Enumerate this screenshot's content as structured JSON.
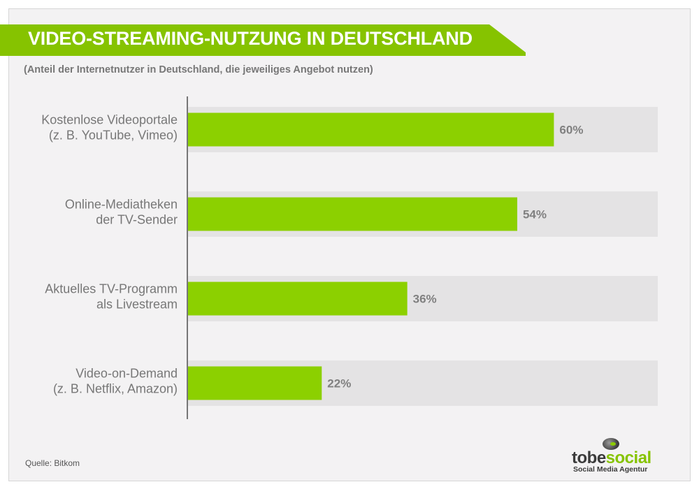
{
  "header": {
    "title": "VIDEO-STREAMING-NUTZUNG IN DEUTSCHLAND",
    "subtitle": "(Anteil der Internetnutzer in Deutschland, die jeweiliges Angebot nutzen)"
  },
  "colors": {
    "accent": "#86c300",
    "bar": "#8cd000",
    "track": "#e4e3e4",
    "label": "#777777",
    "value_label": "#808080"
  },
  "chart_data": {
    "type": "bar",
    "orientation": "horizontal",
    "title": "VIDEO-STREAMING-NUTZUNG IN DEUTSCHLAND",
    "subtitle": "(Anteil der Internetnutzer in Deutschland, die jeweiliges Angebot nutzen)",
    "categories": [
      [
        "Kostenlose Videoportale",
        "(z. B. YouTube, Vimeo)"
      ],
      [
        "Online-Mediatheken",
        "der TV-Sender"
      ],
      [
        "Aktuelles TV-Programm",
        "als Livestream"
      ],
      [
        "Video-on-Demand",
        "(z. B. Netflix, Amazon)"
      ]
    ],
    "values": [
      60,
      54,
      36,
      22
    ],
    "value_labels": [
      "60%",
      "54%",
      "36%",
      "22%"
    ],
    "unit": "%",
    "xlim": [
      0,
      77
    ],
    "grid": false
  },
  "footer": {
    "source": "Quelle: Bitkom"
  },
  "logo": {
    "word_part1": "tobe",
    "word_part2": "social",
    "tagline": "Social Media Agentur"
  }
}
